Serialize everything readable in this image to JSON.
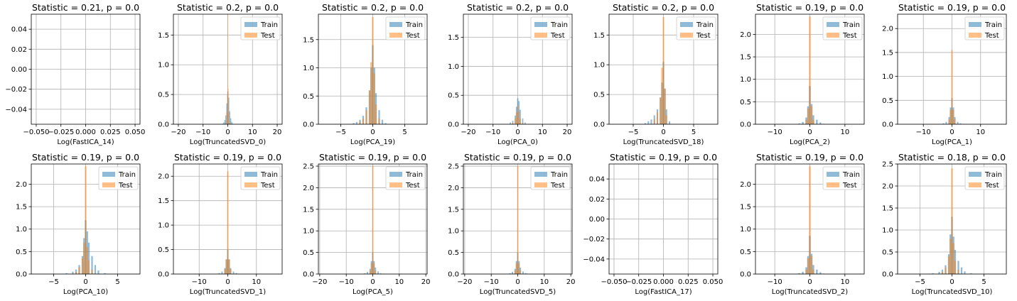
{
  "colors": {
    "train": "#1f77b4",
    "test": "#ff7f0e",
    "grid": "#b0b0b0",
    "frame": "#000000"
  },
  "chart_data": [
    {
      "type": "histogram",
      "title": "Statistic = 0.21, p = 0.0",
      "xlabel": "Log(FastICA_14)",
      "empty": true,
      "xlim": [
        -0.055,
        0.055
      ],
      "xticks": [
        -0.05,
        -0.025,
        0.0,
        0.025,
        0.05
      ],
      "xticklabels": [
        "−0.050",
        "−0.025",
        "0.000",
        "0.025",
        "0.050"
      ],
      "ylim": [
        -0.055,
        0.055
      ],
      "yticks": [
        -0.04,
        -0.02,
        0.0,
        0.02,
        0.04
      ],
      "yticklabels": [
        "−0.04",
        "−0.02",
        "0.00",
        "0.02",
        "0.04"
      ],
      "grid": true
    },
    {
      "type": "histogram",
      "title": "Statistic = 0.2, p = 0.0",
      "xlabel": "Log(TruncatedSVD_0)",
      "legend": [
        "Train",
        "Test"
      ],
      "legend_loc": "upper-right",
      "xlim": [
        -22,
        22
      ],
      "xticks": [
        -20,
        -10,
        0,
        10,
        20
      ],
      "xticklabels": [
        "−20",
        "−10",
        "0",
        "10",
        "20"
      ],
      "ylim": [
        0,
        1.85
      ],
      "yticks": [
        0,
        0.5,
        1.0,
        1.5
      ],
      "yticklabels": [
        "0.0",
        "0.5",
        "1.0",
        "1.5"
      ],
      "grid": true,
      "train": {
        "x": [
          -2,
          -1.6,
          -1.2,
          -0.8,
          -0.4,
          0,
          0.4,
          0.8,
          1.2,
          1.6,
          2
        ],
        "density": [
          0.01,
          0.03,
          0.07,
          0.15,
          0.35,
          0.55,
          0.45,
          0.22,
          0.1,
          0.04,
          0.01
        ]
      },
      "test": {
        "x": [
          -0.8,
          -0.4,
          -0.2,
          0,
          0.2,
          0.4,
          0.8
        ],
        "density": [
          0.05,
          0.2,
          0.5,
          1.85,
          0.6,
          0.2,
          0.05
        ]
      }
    },
    {
      "type": "histogram",
      "title": "Statistic = 0.2, p = 0.0",
      "xlabel": "Log(PCA_19)",
      "legend": [
        "Train",
        "Test"
      ],
      "legend_loc": "upper-right",
      "xlim": [
        -8.5,
        8.5
      ],
      "xticks": [
        -5,
        0,
        5
      ],
      "xticklabels": [
        "−5",
        "0",
        "5"
      ],
      "ylim": [
        0,
        1.95
      ],
      "yticks": [
        0,
        0.5,
        1.0,
        1.5
      ],
      "yticklabels": [
        "0.0",
        "0.5",
        "1.0",
        "1.5"
      ],
      "grid": true,
      "train": {
        "x": [
          -3,
          -2.5,
          -2,
          -1.5,
          -1,
          -0.5,
          -0.25,
          0,
          0.25,
          0.5,
          1,
          1.5,
          2
        ],
        "density": [
          0.02,
          0.04,
          0.08,
          0.15,
          0.3,
          0.6,
          1.0,
          1.4,
          1.0,
          0.55,
          0.25,
          0.08,
          0.02
        ]
      },
      "test": {
        "x": [
          -2,
          -1.5,
          -1,
          -0.5,
          -0.25,
          0,
          0.25,
          0.5,
          1
        ],
        "density": [
          0.05,
          0.1,
          0.25,
          0.6,
          1.1,
          1.9,
          0.9,
          0.35,
          0.1
        ]
      }
    },
    {
      "type": "histogram",
      "title": "Statistic = 0.2, p = 0.0",
      "xlabel": "Log(PCA_0)",
      "legend": [
        "Train",
        "Test"
      ],
      "legend_loc": "upper-right",
      "xlim": [
        -22,
        22
      ],
      "xticks": [
        -20,
        -10,
        0,
        10,
        20
      ],
      "xticklabels": [
        "−20",
        "−10",
        "0",
        "10",
        "20"
      ],
      "ylim": [
        0,
        1.9
      ],
      "yticks": [
        0,
        0.5,
        1.0,
        1.5
      ],
      "yticklabels": [
        "0.0",
        "0.5",
        "1.0",
        "1.5"
      ],
      "grid": true,
      "train": {
        "x": [
          -3,
          -2,
          -1,
          -0.5,
          0,
          0.5,
          1,
          2,
          3
        ],
        "density": [
          0.03,
          0.06,
          0.15,
          0.3,
          0.45,
          0.4,
          0.25,
          0.1,
          0.03
        ]
      },
      "test": {
        "x": [
          -2,
          -1,
          -0.5,
          0,
          0.5,
          1,
          2
        ],
        "density": [
          0.03,
          0.1,
          0.2,
          0.32,
          0.22,
          0.1,
          0.03
        ]
      }
    },
    {
      "type": "histogram",
      "title": "Statistic = 0.2, p = 0.0",
      "xlabel": "Log(TruncatedSVD_18)",
      "legend": [
        "Train",
        "Test"
      ],
      "legend_loc": "upper-right",
      "xlim": [
        -9,
        9
      ],
      "xticks": [
        -5,
        0,
        5
      ],
      "xticklabels": [
        "−5",
        "0",
        "5"
      ],
      "ylim": [
        0,
        1.85
      ],
      "yticks": [
        0,
        0.5,
        1.0,
        1.5
      ],
      "yticklabels": [
        "0.0",
        "0.5",
        "1.0",
        "1.5"
      ],
      "grid": true,
      "train": {
        "x": [
          -3,
          -2.5,
          -2,
          -1.5,
          -1,
          -0.5,
          -0.25,
          0,
          0.25,
          0.5,
          1
        ],
        "density": [
          0.02,
          0.05,
          0.08,
          0.15,
          0.25,
          0.45,
          0.7,
          1.05,
          0.6,
          0.25,
          0.05
        ]
      },
      "test": {
        "x": [
          -1.5,
          -1,
          -0.5,
          -0.25,
          0,
          0.25,
          0.5
        ],
        "density": [
          0.08,
          0.2,
          0.45,
          0.95,
          1.8,
          0.6,
          0.15
        ]
      }
    },
    {
      "type": "histogram",
      "title": "Statistic = 0.19, p = 0.0",
      "xlabel": "Log(PCA_2)",
      "legend": [
        "Train",
        "Test"
      ],
      "legend_loc": "upper-right",
      "xlim": [
        -15.5,
        15.5
      ],
      "xticks": [
        -10,
        0,
        10
      ],
      "xticklabels": [
        "−10",
        "0",
        "10"
      ],
      "ylim": [
        0,
        2.45
      ],
      "yticks": [
        0,
        0.5,
        1.0,
        1.5,
        2.0
      ],
      "yticklabels": [
        "0.0",
        "0.5",
        "1.0",
        "1.5",
        "2.0"
      ],
      "grid": true,
      "train": {
        "x": [
          -3,
          -2,
          -1,
          -0.5,
          0,
          0.5,
          1,
          2,
          3,
          4
        ],
        "density": [
          0.02,
          0.05,
          0.15,
          0.4,
          0.85,
          0.45,
          0.2,
          0.1,
          0.04,
          0.01
        ]
      },
      "test": {
        "x": [
          -1,
          -0.5,
          0,
          0.5,
          1
        ],
        "density": [
          0.1,
          0.35,
          2.4,
          0.4,
          0.1
        ]
      }
    },
    {
      "type": "histogram",
      "title": "Statistic = 0.19, p = 0.0",
      "xlabel": "Log(PCA_1)",
      "legend": [
        "Train",
        "Test"
      ],
      "legend_loc": "upper-right",
      "xlim": [
        -19,
        19
      ],
      "xticks": [
        -10,
        0,
        10
      ],
      "xticklabels": [
        "−10",
        "0",
        "10"
      ],
      "ylim": [
        0,
        2.3
      ],
      "yticks": [
        0,
        0.5,
        1.0,
        1.5,
        2.0
      ],
      "yticklabels": [
        "0.0",
        "0.5",
        "1.0",
        "1.5",
        "2.0"
      ],
      "grid": true,
      "train": {
        "x": [
          -3,
          -2,
          -1,
          -0.5,
          0,
          0.5,
          1,
          2,
          3
        ],
        "density": [
          0.02,
          0.05,
          0.15,
          0.35,
          0.55,
          0.35,
          0.15,
          0.05,
          0.02
        ]
      },
      "test": {
        "x": [
          -1,
          -0.5,
          0,
          0.5,
          1
        ],
        "density": [
          0.1,
          0.3,
          1.55,
          0.3,
          0.1
        ]
      }
    },
    {
      "type": "histogram",
      "title": "Statistic = 0.19, p = 0.0",
      "xlabel": "Log(PCA_10)",
      "legend": [
        "Train",
        "Test"
      ],
      "legend_loc": "upper-right",
      "xlim": [
        -8.5,
        8.5
      ],
      "xticks": [
        -5,
        0,
        5
      ],
      "xticklabels": [
        "−5",
        "0",
        "5"
      ],
      "ylim": [
        0,
        2.45
      ],
      "yticks": [
        0,
        0.5,
        1.0,
        1.5,
        2.0
      ],
      "yticklabels": [
        "0.0",
        "0.5",
        "1.0",
        "1.5",
        "2.0"
      ],
      "grid": true,
      "train": {
        "x": [
          -3,
          -2,
          -1.5,
          -1,
          -0.5,
          -0.25,
          0,
          0.25,
          0.5,
          1,
          1.5,
          2,
          3
        ],
        "density": [
          0.02,
          0.05,
          0.1,
          0.2,
          0.4,
          0.8,
          1.2,
          0.95,
          0.7,
          0.4,
          0.2,
          0.08,
          0.02
        ]
      },
      "test": {
        "x": [
          -1.5,
          -1,
          -0.5,
          -0.25,
          0,
          0.25,
          0.5,
          1
        ],
        "density": [
          0.05,
          0.15,
          0.35,
          0.7,
          2.4,
          0.6,
          0.3,
          0.1
        ]
      }
    },
    {
      "type": "histogram",
      "title": "Statistic = 0.19, p = 0.0",
      "xlabel": "Log(TruncatedSVD_1)",
      "legend": [
        "Train",
        "Test"
      ],
      "legend_loc": "upper-right",
      "xlim": [
        -19,
        19
      ],
      "xticks": [
        -10,
        0,
        10
      ],
      "xticklabels": [
        "−10",
        "0",
        "10"
      ],
      "ylim": [
        0,
        2.25
      ],
      "yticks": [
        0,
        0.5,
        1.0,
        1.5,
        2.0
      ],
      "yticklabels": [
        "0.0",
        "0.5",
        "1.0",
        "1.5",
        "2.0"
      ],
      "grid": true,
      "train": {
        "x": [
          -3,
          -2,
          -1,
          -0.5,
          0,
          0.5,
          1,
          2,
          3
        ],
        "density": [
          0.02,
          0.05,
          0.12,
          0.3,
          0.5,
          0.3,
          0.12,
          0.05,
          0.02
        ]
      },
      "test": {
        "x": [
          -1,
          -0.5,
          0,
          0.5,
          1
        ],
        "density": [
          0.1,
          0.3,
          2.1,
          0.3,
          0.1
        ]
      }
    },
    {
      "type": "histogram",
      "title": "Statistic = 0.19, p = 0.0",
      "xlabel": "Log(PCA_5)",
      "legend": [
        "Train",
        "Test"
      ],
      "legend_loc": "upper-right",
      "xlim": [
        -20.5,
        20.5
      ],
      "xticks": [
        -20,
        -10,
        0,
        10,
        20
      ],
      "xticklabels": [
        "−20",
        "−10",
        "0",
        "10",
        "20"
      ],
      "ylim": [
        0,
        2.55
      ],
      "yticks": [
        0,
        0.5,
        1.0,
        1.5,
        2.0,
        2.5
      ],
      "yticklabels": [
        "0.0",
        "0.5",
        "1.0",
        "1.5",
        "2.0",
        "2.5"
      ],
      "grid": true,
      "train": {
        "x": [
          -3,
          -2,
          -1,
          -0.5,
          0,
          0.5,
          1,
          2,
          3
        ],
        "density": [
          0.02,
          0.05,
          0.12,
          0.3,
          0.5,
          0.3,
          0.15,
          0.06,
          0.02
        ]
      },
      "test": {
        "x": [
          -1,
          -0.5,
          0,
          0.5,
          1
        ],
        "density": [
          0.08,
          0.25,
          2.5,
          0.25,
          0.08
        ]
      }
    },
    {
      "type": "histogram",
      "title": "Statistic = 0.19, p = 0.0",
      "xlabel": "Log(TruncatedSVD_5)",
      "legend": [
        "Train",
        "Test"
      ],
      "legend_loc": "upper-right",
      "xlim": [
        -20.5,
        20.5
      ],
      "xticks": [
        -20,
        -10,
        0,
        10,
        20
      ],
      "xticklabels": [
        "−20",
        "−10",
        "0",
        "10",
        "20"
      ],
      "ylim": [
        0,
        2.55
      ],
      "yticks": [
        0,
        0.5,
        1.0,
        1.5,
        2.0,
        2.5
      ],
      "yticklabels": [
        "0.0",
        "0.5",
        "1.0",
        "1.5",
        "2.0",
        "2.5"
      ],
      "grid": true,
      "train": {
        "x": [
          -3,
          -2,
          -1,
          -0.5,
          0,
          0.5,
          1,
          2,
          3
        ],
        "density": [
          0.02,
          0.05,
          0.12,
          0.3,
          0.5,
          0.3,
          0.15,
          0.06,
          0.02
        ]
      },
      "test": {
        "x": [
          -1,
          -0.5,
          0,
          0.5,
          1
        ],
        "density": [
          0.08,
          0.25,
          2.5,
          0.25,
          0.08
        ]
      }
    },
    {
      "type": "histogram",
      "title": "Statistic = 0.19, p = 0.0",
      "xlabel": "Log(FastICA_17)",
      "empty": true,
      "xlim": [
        -0.055,
        0.055
      ],
      "xticks": [
        -0.05,
        -0.025,
        0.0,
        0.025,
        0.05
      ],
      "xticklabels": [
        "−0.050",
        "−0.025",
        "0.000",
        "0.025",
        "0.050"
      ],
      "ylim": [
        -0.055,
        0.055
      ],
      "yticks": [
        -0.04,
        -0.02,
        0.0,
        0.02,
        0.04
      ],
      "yticklabels": [
        "−0.04",
        "−0.02",
        "0.00",
        "0.02",
        "0.04"
      ],
      "grid": true
    },
    {
      "type": "histogram",
      "title": "Statistic = 0.19, p = 0.0",
      "xlabel": "Log(TruncatedSVD_2)",
      "legend": [
        "Train",
        "Test"
      ],
      "legend_loc": "upper-right",
      "xlim": [
        -15.5,
        15.5
      ],
      "xticks": [
        -10,
        0,
        10
      ],
      "xticklabels": [
        "−10",
        "0",
        "10"
      ],
      "ylim": [
        0,
        2.45
      ],
      "yticks": [
        0,
        0.5,
        1.0,
        1.5,
        2.0
      ],
      "yticklabels": [
        "0.0",
        "0.5",
        "1.0",
        "1.5",
        "2.0"
      ],
      "grid": true,
      "train": {
        "x": [
          -3,
          -2,
          -1,
          -0.5,
          0,
          0.5,
          1,
          2,
          3,
          4
        ],
        "density": [
          0.02,
          0.05,
          0.15,
          0.4,
          0.85,
          0.45,
          0.2,
          0.1,
          0.04,
          0.01
        ]
      },
      "test": {
        "x": [
          -1,
          -0.5,
          0,
          0.5,
          1
        ],
        "density": [
          0.1,
          0.35,
          2.4,
          0.4,
          0.1
        ]
      }
    },
    {
      "type": "histogram",
      "title": "Statistic = 0.18, p = 0.0",
      "xlabel": "Log(TruncatedSVD_10)",
      "legend": [
        "Train",
        "Test"
      ],
      "legend_loc": "upper-right",
      "xlim": [
        -8.5,
        8.5
      ],
      "xticks": [
        -5,
        0,
        5
      ],
      "xticklabels": [
        "−5",
        "0",
        "5"
      ],
      "ylim": [
        0,
        2.5
      ],
      "yticks": [
        0,
        0.5,
        1.0,
        1.5,
        2.0,
        2.5
      ],
      "yticklabels": [
        "0.0",
        "0.5",
        "1.0",
        "1.5",
        "2.0",
        "2.5"
      ],
      "grid": true,
      "train": {
        "x": [
          -3,
          -2,
          -1.5,
          -1,
          -0.5,
          -0.25,
          0,
          0.25,
          0.5,
          1,
          1.5,
          2,
          3
        ],
        "density": [
          0.02,
          0.05,
          0.1,
          0.2,
          0.45,
          0.9,
          1.3,
          0.85,
          0.55,
          0.3,
          0.15,
          0.06,
          0.02
        ]
      },
      "test": {
        "x": [
          -1.5,
          -1,
          -0.5,
          -0.25,
          0,
          0.25,
          0.5,
          1
        ],
        "density": [
          0.05,
          0.15,
          0.4,
          0.8,
          2.4,
          0.7,
          0.3,
          0.1
        ]
      }
    }
  ]
}
